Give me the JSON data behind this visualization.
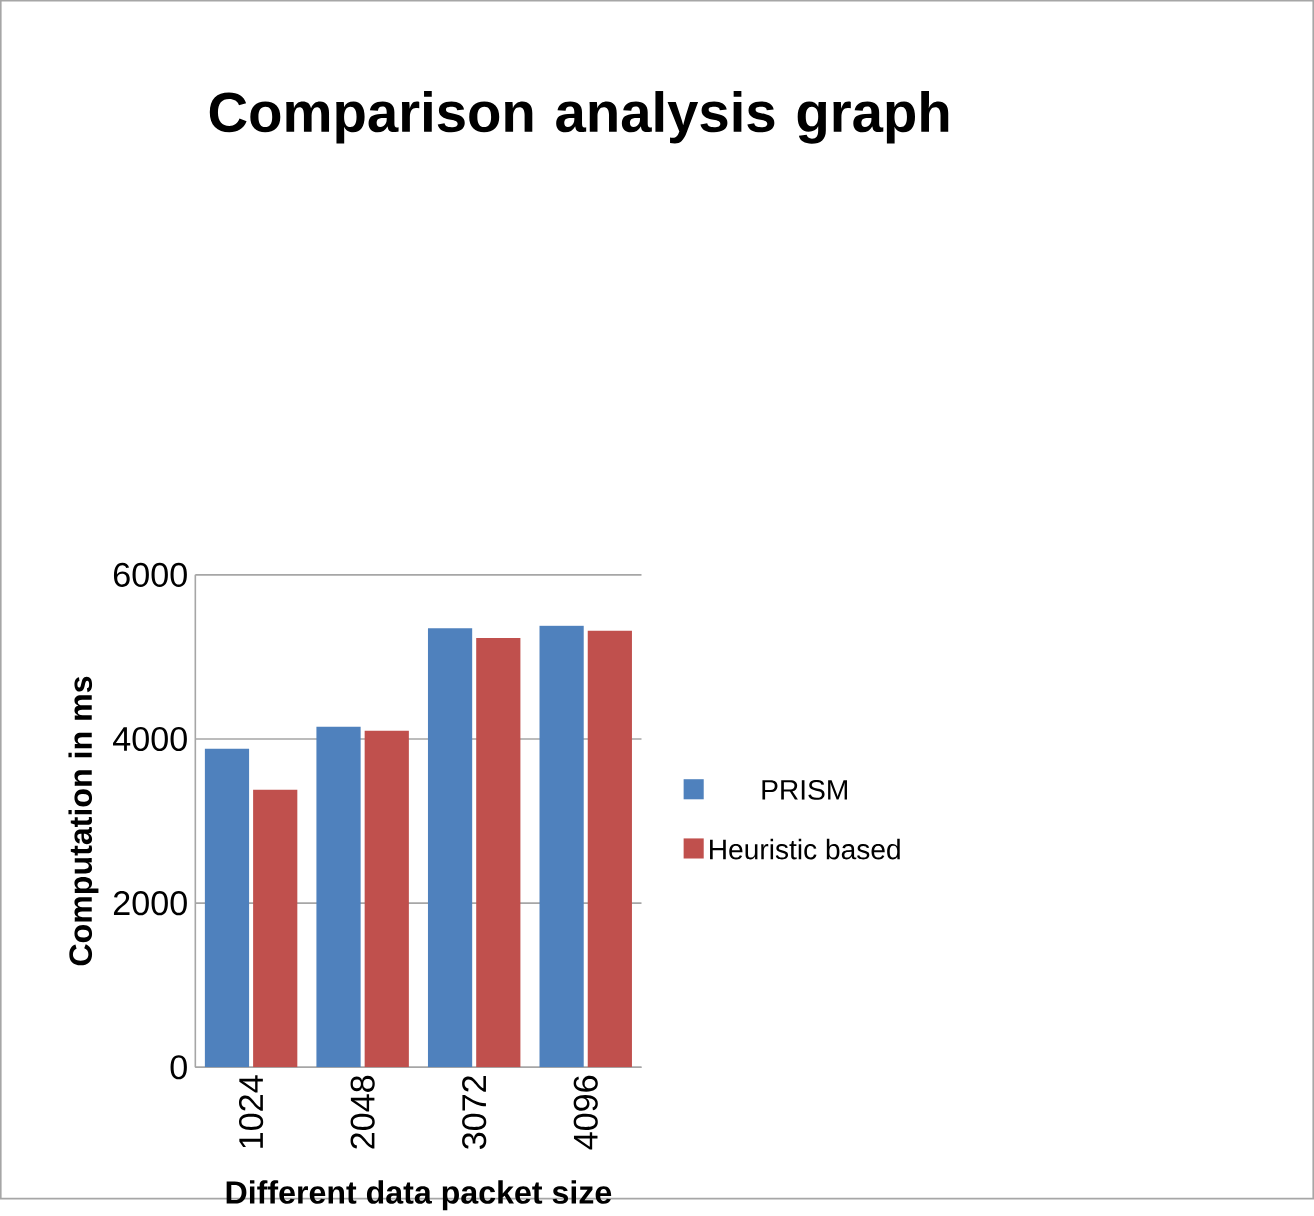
{
  "chart_data": {
    "type": "bar",
    "title": "Comparison analysis graph",
    "xlabel": "Different data packet size",
    "ylabel": "Computation in ms",
    "categories": [
      "1024",
      "2048",
      "3072",
      "4096"
    ],
    "series": [
      {
        "name": "PRISM",
        "color": "#4f81bd",
        "values": [
          3880,
          4150,
          5350,
          5380
        ]
      },
      {
        "name": "Heuristic based",
        "color": "#c0504d",
        "values": [
          3380,
          4100,
          5230,
          5320
        ]
      }
    ],
    "ylim": [
      0,
      6000
    ],
    "yticks": [
      0,
      2000,
      4000,
      6000
    ],
    "grid": "y",
    "legend": "right"
  }
}
